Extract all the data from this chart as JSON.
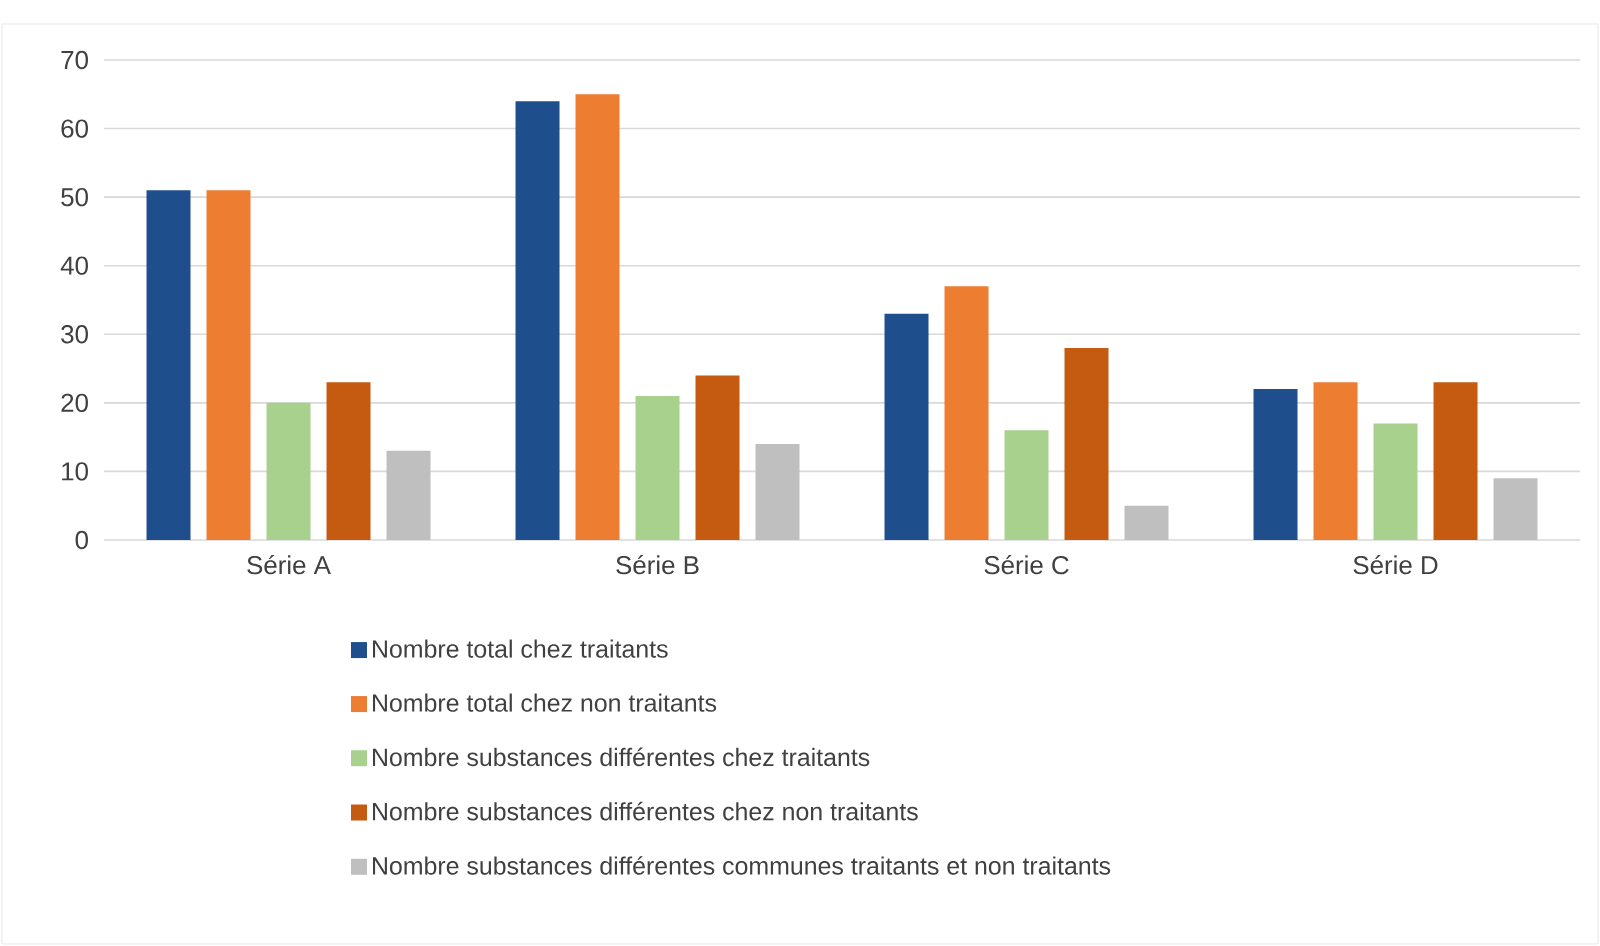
{
  "chart_data": {
    "type": "bar",
    "categories": [
      "Série A",
      "Série B",
      "Série C",
      "Série D"
    ],
    "series": [
      {
        "name": "Nombre total chez traitants",
        "color": "#1f4e8c",
        "values": [
          51,
          64,
          33,
          22
        ]
      },
      {
        "name": "Nombre total chez non traitants",
        "color": "#ed7d31",
        "values": [
          51,
          65,
          37,
          23
        ]
      },
      {
        "name": "Nombre substances différentes chez traitants",
        "color": "#a9d18e",
        "values": [
          20,
          21,
          16,
          17
        ]
      },
      {
        "name": "Nombre substances différentes chez non traitants",
        "color": "#c55a11",
        "values": [
          23,
          24,
          28,
          23
        ]
      },
      {
        "name": "Nombre substances différentes communes traitants et non traitants",
        "color": "#bfbfbf",
        "values": [
          13,
          14,
          5,
          9
        ]
      }
    ],
    "ylim": [
      0,
      70
    ],
    "yticks": [
      0,
      10,
      20,
      30,
      40,
      50,
      60,
      70
    ],
    "grid": "y",
    "legend": "bottom"
  }
}
